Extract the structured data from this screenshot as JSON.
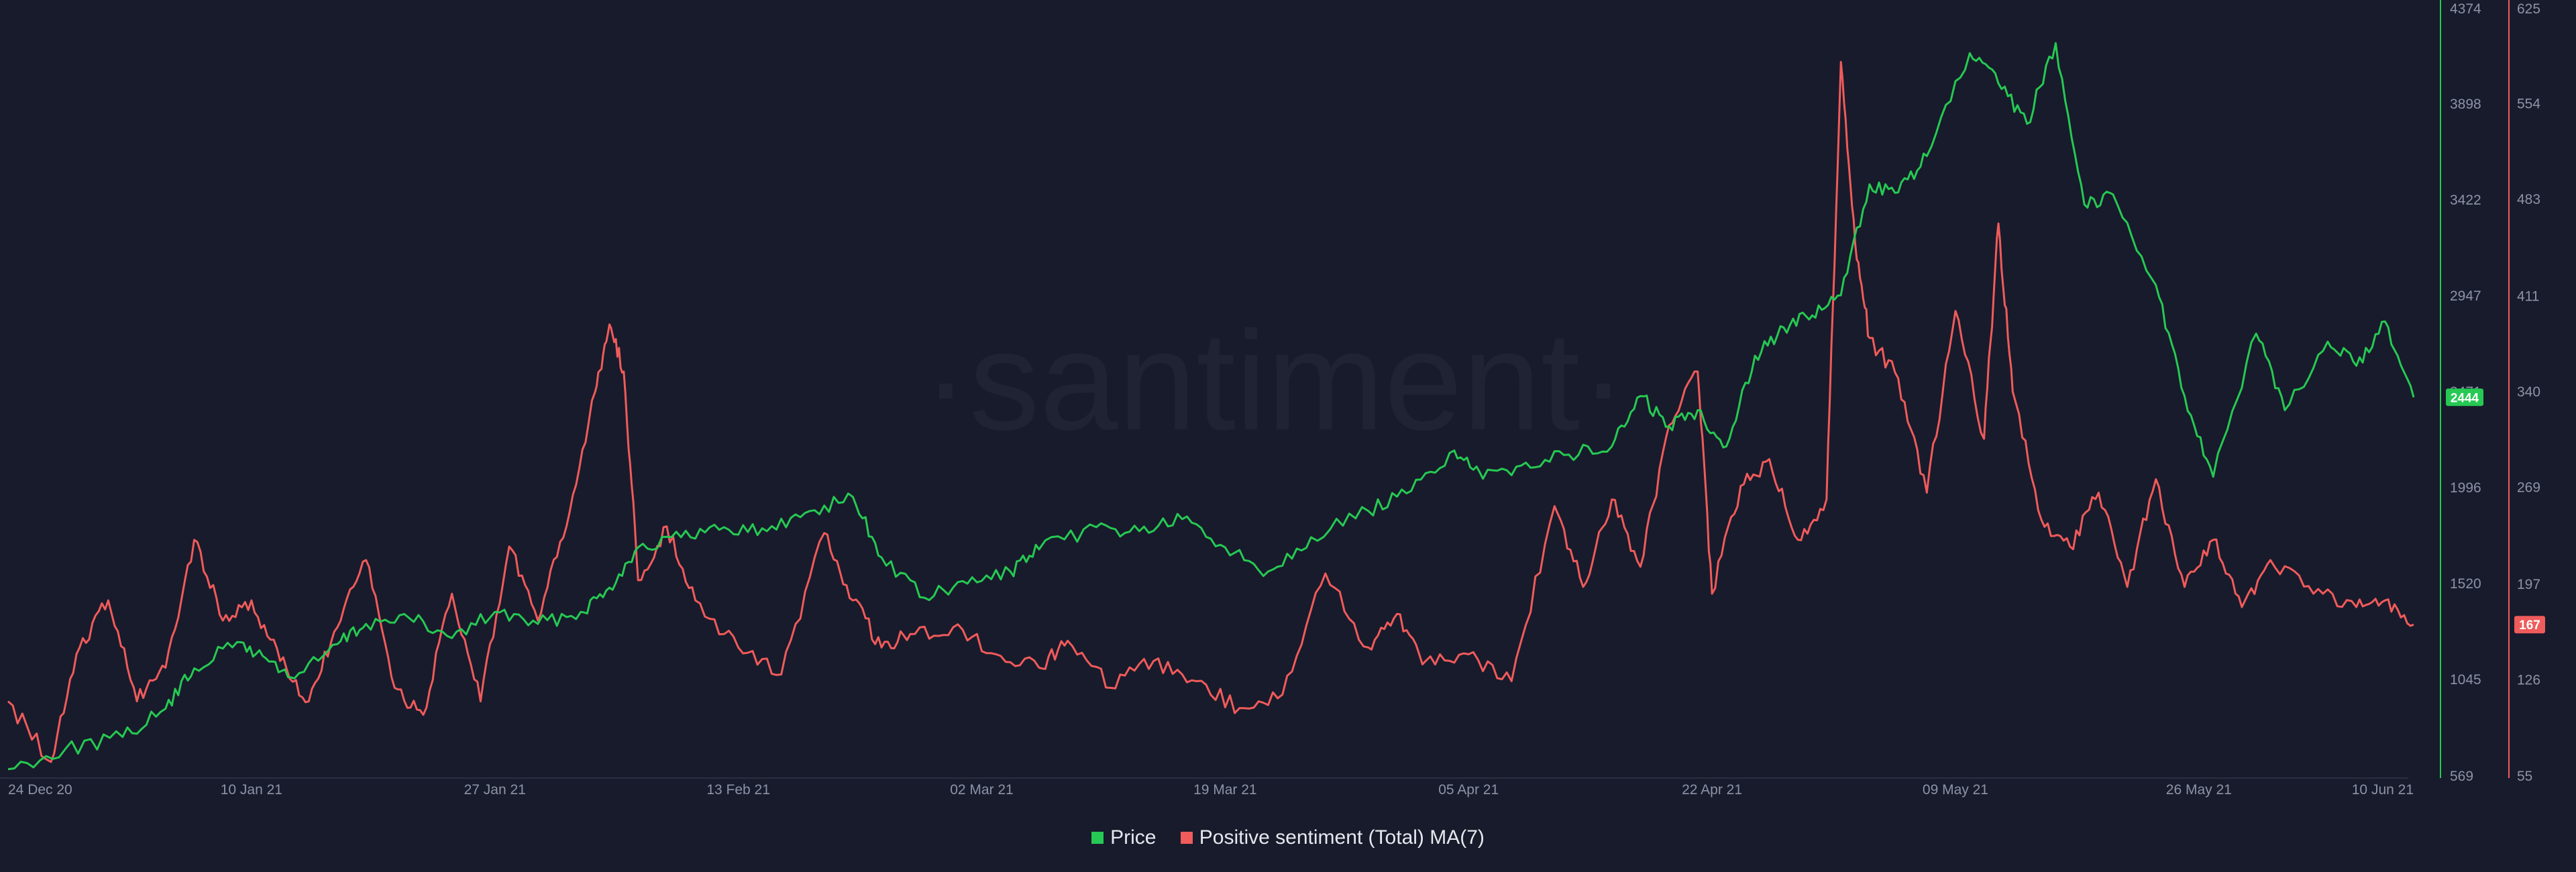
{
  "watermark": "·santiment·",
  "chart_data": {
    "type": "line",
    "x_ticks": [
      "24 Dec 20",
      "10 Jan 21",
      "27 Jan 21",
      "13 Feb 21",
      "02 Mar 21",
      "19 Mar 21",
      "05 Apr 21",
      "22 Apr 21",
      "09 May 21",
      "26 May 21",
      "10 Jun 21"
    ],
    "x_range": [
      "24 Dec 20",
      "10 Jun 21"
    ],
    "left_axis": {
      "name": "Price",
      "ylim": [
        569,
        4374
      ],
      "ticks": [
        "4374",
        "3898",
        "3422",
        "2947",
        "2471",
        "1996",
        "1520",
        "1045",
        "569"
      ]
    },
    "right_axis": {
      "name": "Positive sentiment (Total) MA(7)",
      "ylim": [
        55,
        625
      ],
      "ticks": [
        "625",
        "554",
        "483",
        "411",
        "340",
        "269",
        "197",
        "126",
        "55"
      ]
    },
    "legend": {
      "placement": "bottom-center"
    },
    "series": [
      {
        "name": "Price",
        "color": "#26c953",
        "axis": "left",
        "last_value": "2444",
        "x": [
          "2020-12-24",
          "2020-12-28",
          "2021-01-01",
          "2021-01-04",
          "2021-01-06",
          "2021-01-09",
          "2021-01-11",
          "2021-01-13",
          "2021-01-16",
          "2021-01-18",
          "2021-01-21",
          "2021-01-24",
          "2021-01-27",
          "2021-01-30",
          "2021-02-02",
          "2021-02-04",
          "2021-02-06",
          "2021-02-09",
          "2021-02-12",
          "2021-02-15",
          "2021-02-18",
          "2021-02-21",
          "2021-02-23",
          "2021-02-26",
          "2021-03-01",
          "2021-03-04",
          "2021-03-06",
          "2021-03-10",
          "2021-03-13",
          "2021-03-16",
          "2021-03-19",
          "2021-03-22",
          "2021-03-25",
          "2021-03-29",
          "2021-04-01",
          "2021-04-04",
          "2021-04-06",
          "2021-04-09",
          "2021-04-12",
          "2021-04-15",
          "2021-04-17",
          "2021-04-19",
          "2021-04-21",
          "2021-04-23",
          "2021-04-25",
          "2021-04-27",
          "2021-04-29",
          "2021-05-01",
          "2021-05-03",
          "2021-05-05",
          "2021-05-07",
          "2021-05-10",
          "2021-05-12",
          "2021-05-14",
          "2021-05-16",
          "2021-05-18",
          "2021-05-20",
          "2021-05-23",
          "2021-05-25",
          "2021-05-27",
          "2021-05-30",
          "2021-06-01",
          "2021-06-04",
          "2021-06-06",
          "2021-06-08",
          "2021-06-10"
        ],
        "values": [
          600,
          700,
          760,
          900,
          1100,
          1230,
          1150,
          1050,
          1220,
          1320,
          1350,
          1250,
          1380,
          1320,
          1380,
          1500,
          1700,
          1750,
          1800,
          1780,
          1880,
          1950,
          1650,
          1450,
          1520,
          1580,
          1690,
          1800,
          1780,
          1840,
          1700,
          1580,
          1750,
          1880,
          1980,
          2180,
          2040,
          2120,
          2160,
          2200,
          2450,
          2300,
          2380,
          2200,
          2650,
          2790,
          2850,
          2950,
          3500,
          3460,
          3640,
          4150,
          4000,
          3800,
          4200,
          3400,
          3450,
          3000,
          2450,
          2050,
          2760,
          2380,
          2720,
          2600,
          2820,
          2444
        ]
      },
      {
        "name": "Positive sentiment (Total) MA(7)",
        "color": "#f05b5b",
        "axis": "right",
        "last_value": "167",
        "x": [
          "2020-12-24",
          "2020-12-27",
          "2020-12-29",
          "2020-12-31",
          "2021-01-02",
          "2021-01-04",
          "2021-01-06",
          "2021-01-08",
          "2021-01-10",
          "2021-01-12",
          "2021-01-14",
          "2021-01-16",
          "2021-01-18",
          "2021-01-20",
          "2021-01-22",
          "2021-01-24",
          "2021-01-26",
          "2021-01-28",
          "2021-01-30",
          "2021-02-01",
          "2021-02-03",
          "2021-02-04",
          "2021-02-05",
          "2021-02-06",
          "2021-02-08",
          "2021-02-10",
          "2021-02-13",
          "2021-02-16",
          "2021-02-19",
          "2021-02-21",
          "2021-02-23",
          "2021-02-25",
          "2021-02-28",
          "2021-03-03",
          "2021-03-06",
          "2021-03-08",
          "2021-03-11",
          "2021-03-14",
          "2021-03-17",
          "2021-03-20",
          "2021-03-23",
          "2021-03-26",
          "2021-03-29",
          "2021-03-31",
          "2021-04-02",
          "2021-04-05",
          "2021-04-08",
          "2021-04-11",
          "2021-04-13",
          "2021-04-15",
          "2021-04-17",
          "2021-04-19",
          "2021-04-21",
          "2021-04-22",
          "2021-04-24",
          "2021-04-26",
          "2021-04-28",
          "2021-04-30",
          "2021-05-01",
          "2021-05-02",
          "2021-05-03",
          "2021-05-05",
          "2021-05-07",
          "2021-05-09",
          "2021-05-11",
          "2021-05-12",
          "2021-05-13",
          "2021-05-15",
          "2021-05-17",
          "2021-05-19",
          "2021-05-21",
          "2021-05-23",
          "2021-05-25",
          "2021-05-27",
          "2021-05-29",
          "2021-05-31",
          "2021-06-03",
          "2021-06-06",
          "2021-06-08",
          "2021-06-10"
        ],
        "values": [
          110,
          65,
          150,
          185,
          110,
          135,
          230,
          170,
          185,
          140,
          110,
          165,
          215,
          120,
          100,
          190,
          110,
          225,
          170,
          240,
          340,
          390,
          355,
          200,
          240,
          185,
          150,
          130,
          235,
          185,
          150,
          160,
          165,
          145,
          135,
          155,
          120,
          140,
          125,
          105,
          115,
          205,
          150,
          175,
          140,
          145,
          125,
          255,
          195,
          260,
          210,
          315,
          355,
          190,
          270,
          290,
          230,
          260,
          585,
          450,
          380,
          350,
          265,
          400,
          305,
          465,
          340,
          245,
          225,
          265,
          195,
          275,
          195,
          230,
          180,
          215,
          190,
          180,
          185,
          167
        ]
      }
    ]
  },
  "legend_items": [
    {
      "label": "Price",
      "color": "#26c953"
    },
    {
      "label": "Positive sentiment (Total) MA(7)",
      "color": "#f05b5b"
    }
  ]
}
